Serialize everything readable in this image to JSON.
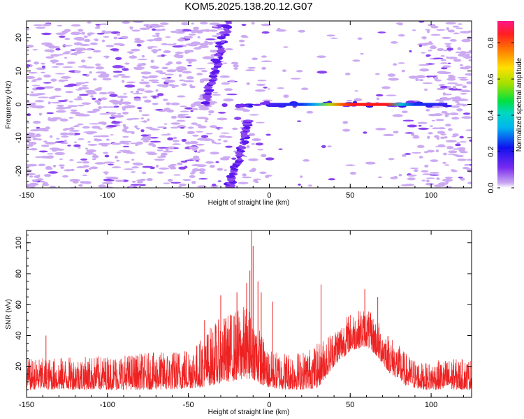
{
  "title": "KOM5.2025.138.20.12.G07",
  "colors": {
    "snr_line": "#ee2222",
    "axis": "#000000"
  },
  "chart_data": [
    {
      "type": "heatmap",
      "xlabel": "Height of straight line (km)",
      "ylabel": "Frequency (Hz)",
      "xlim": [
        -150,
        125
      ],
      "ylim": [
        -25,
        25
      ],
      "xticks": [
        -150,
        -100,
        -50,
        0,
        50,
        100
      ],
      "yticks": [
        -20,
        -10,
        0,
        10,
        20
      ],
      "colorbar": {
        "label": "Normalized spectral amplitude",
        "range": [
          0,
          0.92
        ],
        "ticks": [
          "0.0",
          "0.2",
          "0.4",
          "0.6",
          "0.8"
        ],
        "colormap": "rainbow"
      },
      "features": [
        {
          "kind": "horizontal-band",
          "x_range": [
            -28,
            110
          ],
          "frequency": 0,
          "peak_amplitude": 0.92,
          "peak_x_range": [
            30,
            85
          ]
        },
        {
          "kind": "diagonal-streak",
          "from": [
            -25,
            -25
          ],
          "to": [
            -12,
            -5
          ],
          "amplitude": 0.15
        },
        {
          "kind": "diagonal-streak",
          "from": [
            -40,
            0
          ],
          "to": [
            -25,
            25
          ],
          "amplitude": 0.15
        }
      ],
      "grid": false
    },
    {
      "type": "line",
      "xlabel": "Height of straight line (km)",
      "ylabel": "SNR (v/v)",
      "xlim": [
        -150,
        125
      ],
      "ylim": [
        0,
        108
      ],
      "xticks": [
        -150,
        -100,
        -50,
        0,
        50,
        100
      ],
      "yticks": [
        20,
        40,
        60,
        80,
        100
      ],
      "envelope": {
        "x": [
          -150,
          -100,
          -60,
          -45,
          -35,
          -25,
          -15,
          -10,
          -5,
          0,
          10,
          20,
          30,
          40,
          50,
          60,
          65,
          75,
          85,
          95,
          110,
          125
        ],
        "base": [
          5,
          5,
          5,
          6,
          8,
          10,
          12,
          12,
          8,
          6,
          5,
          5,
          6,
          20,
          30,
          33,
          28,
          15,
          7,
          5,
          5,
          5
        ],
        "top": [
          25,
          27,
          30,
          35,
          48,
          55,
          60,
          55,
          42,
          30,
          30,
          30,
          35,
          45,
          55,
          58,
          52,
          40,
          28,
          22,
          25,
          25
        ]
      },
      "spikes": [
        {
          "x": -138,
          "y": 40
        },
        {
          "x": -40,
          "y": 50
        },
        {
          "x": -30,
          "y": 66
        },
        {
          "x": -20,
          "y": 68
        },
        {
          "x": -14,
          "y": 74
        },
        {
          "x": -12,
          "y": 82
        },
        {
          "x": -11,
          "y": 108
        },
        {
          "x": -10,
          "y": 98
        },
        {
          "x": -7,
          "y": 75
        },
        {
          "x": -5,
          "y": 68
        },
        {
          "x": 2,
          "y": 62
        },
        {
          "x": 32,
          "y": 73
        },
        {
          "x": 59,
          "y": 70
        },
        {
          "x": 67,
          "y": 65
        }
      ],
      "grid": false
    }
  ]
}
